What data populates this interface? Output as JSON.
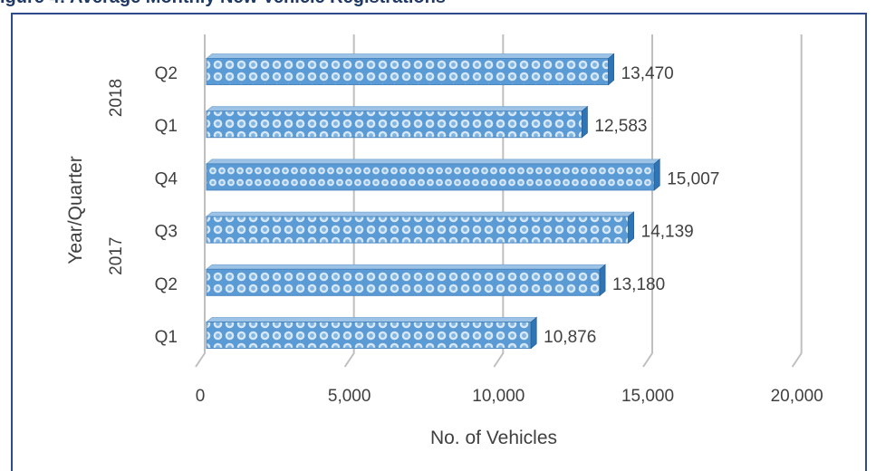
{
  "figure": {
    "title": "igure 4: Average Monthly New Vehicle Registrations"
  },
  "chart_data": {
    "type": "bar",
    "orientation": "horizontal",
    "style": "3d",
    "categories": [
      {
        "year": "2017",
        "quarter": "Q1"
      },
      {
        "year": "2017",
        "quarter": "Q2"
      },
      {
        "year": "2017",
        "quarter": "Q3"
      },
      {
        "year": "2017",
        "quarter": "Q4"
      },
      {
        "year": "2018",
        "quarter": "Q1"
      },
      {
        "year": "2018",
        "quarter": "Q2"
      }
    ],
    "values": [
      10876,
      13180,
      14139,
      15007,
      12583,
      13470
    ],
    "value_labels": [
      "10,876",
      "13,180",
      "14,139",
      "15,007",
      "12,583",
      "13,470"
    ],
    "year_groups": [
      {
        "label": "2017",
        "from": 0,
        "to": 3
      },
      {
        "label": "2018",
        "from": 4,
        "to": 5
      }
    ],
    "xlabel": "No. of Vehicles",
    "ylabel": "Year/Quarter",
    "xlim": [
      0,
      20000
    ],
    "xticks": [
      0,
      5000,
      10000,
      15000,
      20000
    ],
    "xtick_labels": [
      "0",
      "5,000",
      "10,000",
      "15,000",
      "20,000"
    ],
    "grid": true,
    "legend": "none",
    "colors": {
      "bar": "#5b9bd5",
      "bar_light": "#d6e8f7",
      "bar_dark": "#2e75b6",
      "grid": "#bfbfbf",
      "frame": "#2e4c8c"
    }
  }
}
